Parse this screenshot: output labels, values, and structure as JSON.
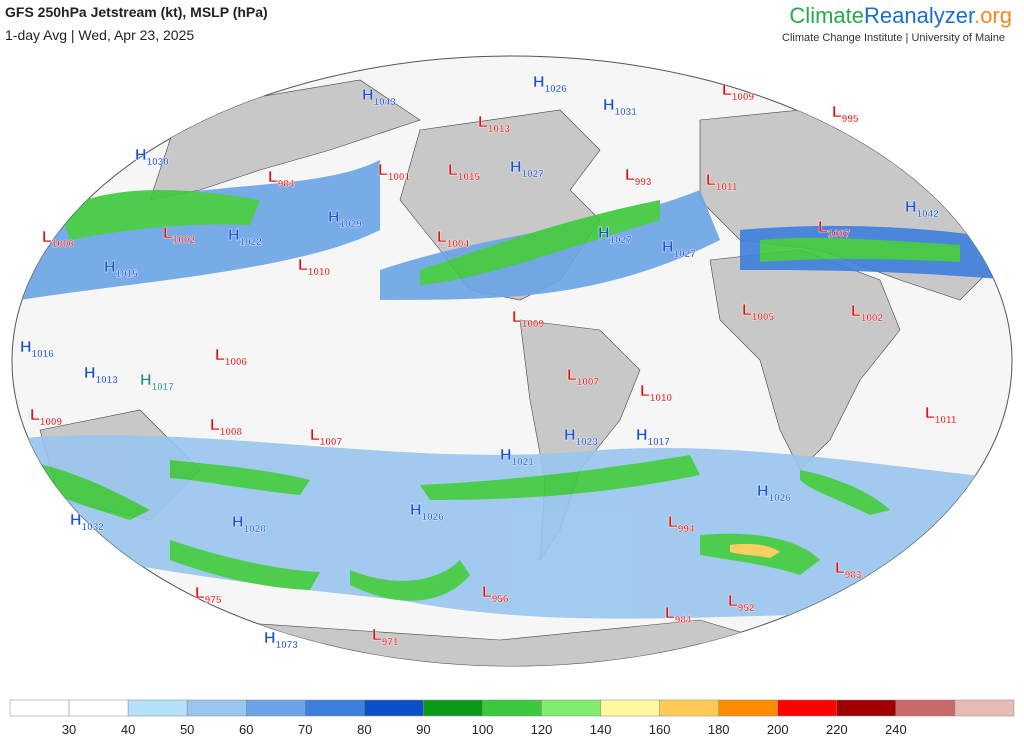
{
  "header": {
    "title": "GFS 250hPa Jetstream (kt), MSLP (hPa)",
    "subtitle": "1-day Avg | Wed, Apr 23, 2025",
    "brand": {
      "climate": "Climate",
      "reanalyzer": "Reanalyzer",
      "org": ".org"
    },
    "institution": "Climate Change Institute | University of Maine"
  },
  "pressure_centers": [
    {
      "type": "H",
      "value": 1043
    },
    {
      "type": "H",
      "value": 1026
    },
    {
      "type": "H",
      "value": 1031
    },
    {
      "type": "L",
      "value": 1009
    },
    {
      "type": "L",
      "value": 995
    },
    {
      "type": "L",
      "value": 1013
    },
    {
      "type": "H",
      "value": 1030
    },
    {
      "type": "L",
      "value": 984
    },
    {
      "type": "L",
      "value": 1001
    },
    {
      "type": "L",
      "value": 1015
    },
    {
      "type": "H",
      "value": 1027
    },
    {
      "type": "L",
      "value": 993
    },
    {
      "type": "L",
      "value": 1011
    },
    {
      "type": "H",
      "value": 1042
    },
    {
      "type": "L",
      "value": 1000
    },
    {
      "type": "L",
      "value": 1002
    },
    {
      "type": "H",
      "value": 1022
    },
    {
      "type": "H",
      "value": 1029
    },
    {
      "type": "L",
      "value": 1004
    },
    {
      "type": "H",
      "value": 1027
    },
    {
      "type": "H",
      "value": 1027
    },
    {
      "type": "L",
      "value": 1007
    },
    {
      "type": "H",
      "value": 1015
    },
    {
      "type": "L",
      "value": 1010
    },
    {
      "type": "L",
      "value": 1009
    },
    {
      "type": "L",
      "value": 1005
    },
    {
      "type": "L",
      "value": 1002
    },
    {
      "type": "H",
      "value": 1016
    },
    {
      "type": "L",
      "value": 1006
    },
    {
      "type": "H",
      "value": 1013
    },
    {
      "type": "H",
      "value": 1017,
      "color": "#2a8a8a"
    },
    {
      "type": "L",
      "value": 1007
    },
    {
      "type": "L",
      "value": 1010
    },
    {
      "type": "L",
      "value": 1009
    },
    {
      "type": "L",
      "value": 1008
    },
    {
      "type": "L",
      "value": 1007
    },
    {
      "type": "H",
      "value": 1023
    },
    {
      "type": "H",
      "value": 1017
    },
    {
      "type": "L",
      "value": 1011
    },
    {
      "type": "H",
      "value": 1021
    },
    {
      "type": "H",
      "value": 1026
    },
    {
      "type": "H",
      "value": 1032
    },
    {
      "type": "H",
      "value": 1028
    },
    {
      "type": "H",
      "value": 1026
    },
    {
      "type": "L",
      "value": 994
    },
    {
      "type": "L",
      "value": 983
    },
    {
      "type": "L",
      "value": 975
    },
    {
      "type": "L",
      "value": 956
    },
    {
      "type": "L",
      "value": 952
    },
    {
      "type": "L",
      "value": 984
    },
    {
      "type": "H",
      "value": 1073
    },
    {
      "type": "L",
      "value": 971
    }
  ],
  "high_color": "#1a4fd8",
  "low_color": "#e01010",
  "colorbar": {
    "ticks": [
      30,
      40,
      50,
      60,
      70,
      80,
      90,
      100,
      120,
      140,
      160,
      180,
      200,
      220,
      240
    ],
    "colors": [
      "#ffffff",
      "#ffffff",
      "#b4e0fa",
      "#98c6ee",
      "#6aa4e6",
      "#3d7fdc",
      "#0a50c8",
      "#0a9a1a",
      "#3cc83c",
      "#80ee6c",
      "#fffaa0",
      "#ffca55",
      "#ff8c00",
      "#ff0000",
      "#a00000",
      "#c86868",
      "#e6bcb2"
    ]
  }
}
